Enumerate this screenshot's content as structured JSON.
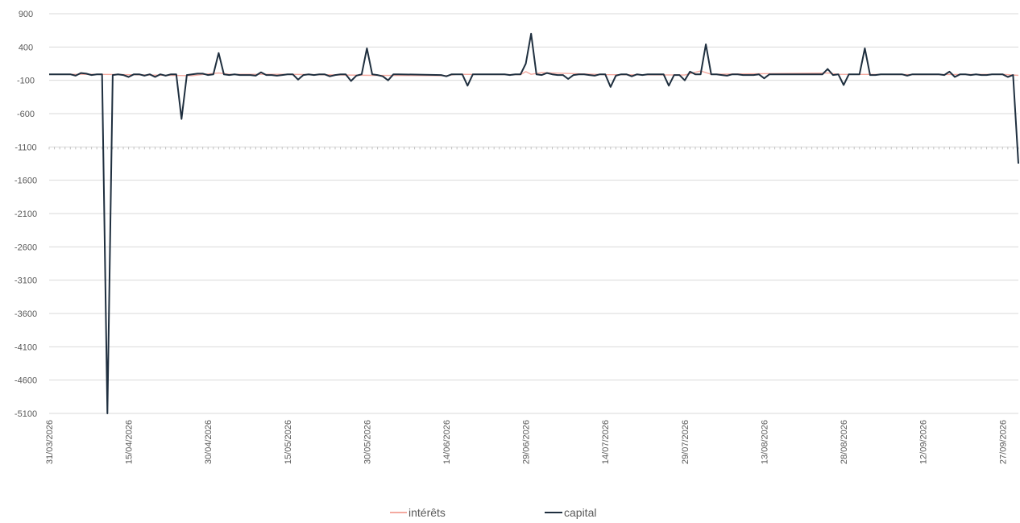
{
  "chart_data": {
    "type": "line",
    "title": "",
    "xlabel": "",
    "ylabel": "",
    "ylim": [
      -5100,
      900
    ],
    "yticks": [
      900,
      400,
      -100,
      -600,
      -1100,
      -1600,
      -2100,
      -2600,
      -3100,
      -3600,
      -4100,
      -4600,
      -5100
    ],
    "x_start": "31/03/2026",
    "x_end": "30/09/2026",
    "xticks": [
      "31/03/2026",
      "15/04/2026",
      "30/04/2026",
      "15/05/2026",
      "30/05/2026",
      "14/06/2026",
      "29/06/2026",
      "14/07/2026",
      "29/07/2026",
      "13/08/2026",
      "28/08/2026",
      "12/09/2026",
      "27/09/2026"
    ],
    "grid": true,
    "legend_position": "bottom",
    "series": [
      {
        "name": "intérêts",
        "color": "#f4aaa0",
        "points": [
          [
            "31/03/2026",
            -10
          ],
          [
            "08/04/2026",
            -10
          ],
          [
            "13/04/2026",
            -12
          ],
          [
            "27/04/2026",
            -30
          ],
          [
            "29/04/2026",
            -12
          ],
          [
            "02/05/2026",
            10
          ],
          [
            "04/05/2026",
            -10
          ],
          [
            "15/05/2026",
            -10
          ],
          [
            "31/05/2026",
            -25
          ],
          [
            "14/06/2026",
            -30
          ],
          [
            "16/06/2026",
            -10
          ],
          [
            "28/06/2026",
            -15
          ],
          [
            "29/06/2026",
            30
          ],
          [
            "30/06/2026",
            -10
          ],
          [
            "02/07/2026",
            15
          ],
          [
            "14/07/2026",
            -15
          ],
          [
            "29/07/2026",
            -20
          ],
          [
            "01/08/2026",
            40
          ],
          [
            "03/08/2026",
            -10
          ],
          [
            "25/08/2026",
            10
          ],
          [
            "27/08/2026",
            -10
          ],
          [
            "12/09/2026",
            -15
          ],
          [
            "27/09/2026",
            -10
          ],
          [
            "30/09/2026",
            -25
          ]
        ]
      },
      {
        "name": "capital",
        "color": "#1f2f3f",
        "points": [
          [
            "31/03/2026",
            -10
          ],
          [
            "02/04/2026",
            -10
          ],
          [
            "04/04/2026",
            -10
          ],
          [
            "05/04/2026",
            -30
          ],
          [
            "06/04/2026",
            10
          ],
          [
            "07/04/2026",
            0
          ],
          [
            "08/04/2026",
            -20
          ],
          [
            "09/04/2026",
            -10
          ],
          [
            "10/04/2026",
            -10
          ],
          [
            "11/04/2026",
            -5100
          ],
          [
            "12/04/2026",
            -20
          ],
          [
            "13/04/2026",
            -10
          ],
          [
            "14/04/2026",
            -20
          ],
          [
            "15/04/2026",
            -50
          ],
          [
            "16/04/2026",
            -10
          ],
          [
            "17/04/2026",
            -10
          ],
          [
            "18/04/2026",
            -30
          ],
          [
            "19/04/2026",
            -10
          ],
          [
            "20/04/2026",
            -50
          ],
          [
            "21/04/2026",
            -10
          ],
          [
            "22/04/2026",
            -30
          ],
          [
            "23/04/2026",
            -10
          ],
          [
            "24/04/2026",
            -10
          ],
          [
            "25/04/2026",
            -680
          ],
          [
            "26/04/2026",
            -20
          ],
          [
            "27/04/2026",
            -10
          ],
          [
            "28/04/2026",
            0
          ],
          [
            "29/04/2026",
            0
          ],
          [
            "30/04/2026",
            -20
          ],
          [
            "01/05/2026",
            -10
          ],
          [
            "02/05/2026",
            310
          ],
          [
            "03/05/2026",
            -10
          ],
          [
            "04/05/2026",
            -20
          ],
          [
            "05/05/2026",
            -10
          ],
          [
            "06/05/2026",
            -20
          ],
          [
            "07/05/2026",
            -20
          ],
          [
            "08/05/2026",
            -20
          ],
          [
            "09/05/2026",
            -30
          ],
          [
            "10/05/2026",
            20
          ],
          [
            "11/05/2026",
            -20
          ],
          [
            "12/05/2026",
            -20
          ],
          [
            "13/05/2026",
            -30
          ],
          [
            "14/05/2026",
            -20
          ],
          [
            "15/05/2026",
            -10
          ],
          [
            "16/05/2026",
            -10
          ],
          [
            "17/05/2026",
            -90
          ],
          [
            "18/05/2026",
            -20
          ],
          [
            "19/05/2026",
            -10
          ],
          [
            "20/05/2026",
            -20
          ],
          [
            "21/05/2026",
            -10
          ],
          [
            "22/05/2026",
            -10
          ],
          [
            "23/05/2026",
            -40
          ],
          [
            "24/05/2026",
            -20
          ],
          [
            "25/05/2026",
            -10
          ],
          [
            "26/05/2026",
            -10
          ],
          [
            "27/05/2026",
            -110
          ],
          [
            "28/05/2026",
            -30
          ],
          [
            "29/05/2026",
            -10
          ],
          [
            "30/05/2026",
            380
          ],
          [
            "31/05/2026",
            -10
          ],
          [
            "01/06/2026",
            -20
          ],
          [
            "02/06/2026",
            -40
          ],
          [
            "03/06/2026",
            -100
          ],
          [
            "04/06/2026",
            -10
          ],
          [
            "05/06/2026",
            -10
          ],
          [
            "13/06/2026",
            -20
          ],
          [
            "14/06/2026",
            -40
          ],
          [
            "15/06/2026",
            -10
          ],
          [
            "16/06/2026",
            -10
          ],
          [
            "17/06/2026",
            -10
          ],
          [
            "18/06/2026",
            -180
          ],
          [
            "19/06/2026",
            -10
          ],
          [
            "20/06/2026",
            -10
          ],
          [
            "25/06/2026",
            -10
          ],
          [
            "26/06/2026",
            -20
          ],
          [
            "27/06/2026",
            -10
          ],
          [
            "28/06/2026",
            -10
          ],
          [
            "29/06/2026",
            150
          ],
          [
            "30/06/2026",
            600
          ],
          [
            "01/07/2026",
            -10
          ],
          [
            "02/07/2026",
            -20
          ],
          [
            "03/07/2026",
            10
          ],
          [
            "04/07/2026",
            -10
          ],
          [
            "05/07/2026",
            -20
          ],
          [
            "06/07/2026",
            -20
          ],
          [
            "07/07/2026",
            -80
          ],
          [
            "08/07/2026",
            -20
          ],
          [
            "09/07/2026",
            -10
          ],
          [
            "10/07/2026",
            -10
          ],
          [
            "11/07/2026",
            -20
          ],
          [
            "12/07/2026",
            -30
          ],
          [
            "13/07/2026",
            -10
          ],
          [
            "14/07/2026",
            -10
          ],
          [
            "15/07/2026",
            -200
          ],
          [
            "16/07/2026",
            -30
          ],
          [
            "17/07/2026",
            -10
          ],
          [
            "18/07/2026",
            -10
          ],
          [
            "19/07/2026",
            -40
          ],
          [
            "20/07/2026",
            -10
          ],
          [
            "21/07/2026",
            -20
          ],
          [
            "22/07/2026",
            -10
          ],
          [
            "23/07/2026",
            -10
          ],
          [
            "24/07/2026",
            -10
          ],
          [
            "25/07/2026",
            -10
          ],
          [
            "26/07/2026",
            -180
          ],
          [
            "27/07/2026",
            -20
          ],
          [
            "28/07/2026",
            -20
          ],
          [
            "29/07/2026",
            -100
          ],
          [
            "30/07/2026",
            30
          ],
          [
            "31/07/2026",
            -10
          ],
          [
            "01/08/2026",
            -10
          ],
          [
            "02/08/2026",
            440
          ],
          [
            "03/08/2026",
            -10
          ],
          [
            "04/08/2026",
            -10
          ],
          [
            "05/08/2026",
            -20
          ],
          [
            "06/08/2026",
            -30
          ],
          [
            "07/08/2026",
            -10
          ],
          [
            "08/08/2026",
            -10
          ],
          [
            "09/08/2026",
            -20
          ],
          [
            "10/08/2026",
            -20
          ],
          [
            "11/08/2026",
            -20
          ],
          [
            "12/08/2026",
            -10
          ],
          [
            "13/08/2026",
            -70
          ],
          [
            "14/08/2026",
            -10
          ],
          [
            "15/08/2026",
            -10
          ],
          [
            "24/08/2026",
            -10
          ],
          [
            "25/08/2026",
            70
          ],
          [
            "26/08/2026",
            -20
          ],
          [
            "27/08/2026",
            -10
          ],
          [
            "28/08/2026",
            -170
          ],
          [
            "29/08/2026",
            -10
          ],
          [
            "30/08/2026",
            -10
          ],
          [
            "31/08/2026",
            -10
          ],
          [
            "01/09/2026",
            380
          ],
          [
            "02/09/2026",
            -20
          ],
          [
            "03/09/2026",
            -20
          ],
          [
            "04/09/2026",
            -10
          ],
          [
            "08/09/2026",
            -10
          ],
          [
            "09/09/2026",
            -30
          ],
          [
            "10/09/2026",
            -10
          ],
          [
            "15/09/2026",
            -10
          ],
          [
            "16/09/2026",
            -20
          ],
          [
            "17/09/2026",
            30
          ],
          [
            "18/09/2026",
            -50
          ],
          [
            "19/09/2026",
            -10
          ],
          [
            "20/09/2026",
            -10
          ],
          [
            "21/09/2026",
            -20
          ],
          [
            "22/09/2026",
            -10
          ],
          [
            "23/09/2026",
            -20
          ],
          [
            "24/09/2026",
            -20
          ],
          [
            "25/09/2026",
            -10
          ],
          [
            "26/09/2026",
            -10
          ],
          [
            "27/09/2026",
            -10
          ],
          [
            "28/09/2026",
            -50
          ],
          [
            "29/09/2026",
            -20
          ],
          [
            "30/09/2026",
            -1350
          ]
        ]
      }
    ]
  }
}
